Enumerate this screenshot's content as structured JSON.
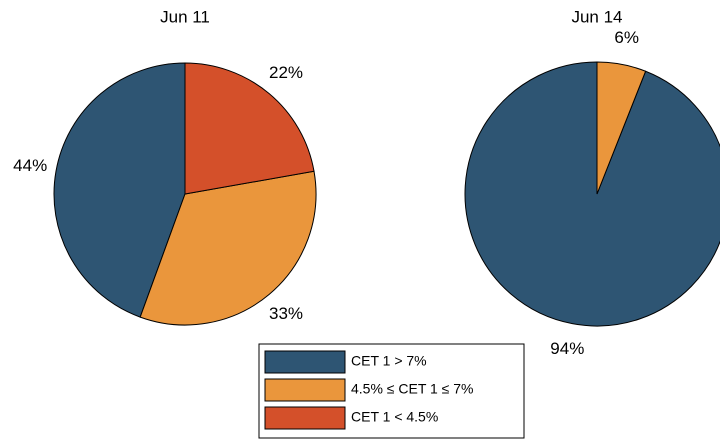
{
  "chart_data": [
    {
      "type": "pie",
      "title": "Jun 11",
      "categories": [
        "CET 1 > 7%",
        "4.5% ≤ CET 1  ≤ 7%",
        "CET 1 < 4.5%"
      ],
      "values": [
        44,
        33,
        22
      ],
      "value_labels": [
        "44%",
        "33%",
        "22%"
      ],
      "colors": [
        "#2e5573",
        "#ea963c",
        "#d4502a"
      ]
    },
    {
      "type": "pie",
      "title": "Jun 14",
      "categories": [
        "CET 1 > 7%",
        "4.5% ≤ CET 1  ≤ 7%"
      ],
      "values": [
        94,
        6
      ],
      "value_labels": [
        "94%",
        "6%"
      ],
      "colors": [
        "#2e5573",
        "#ea963c"
      ]
    }
  ]
}
